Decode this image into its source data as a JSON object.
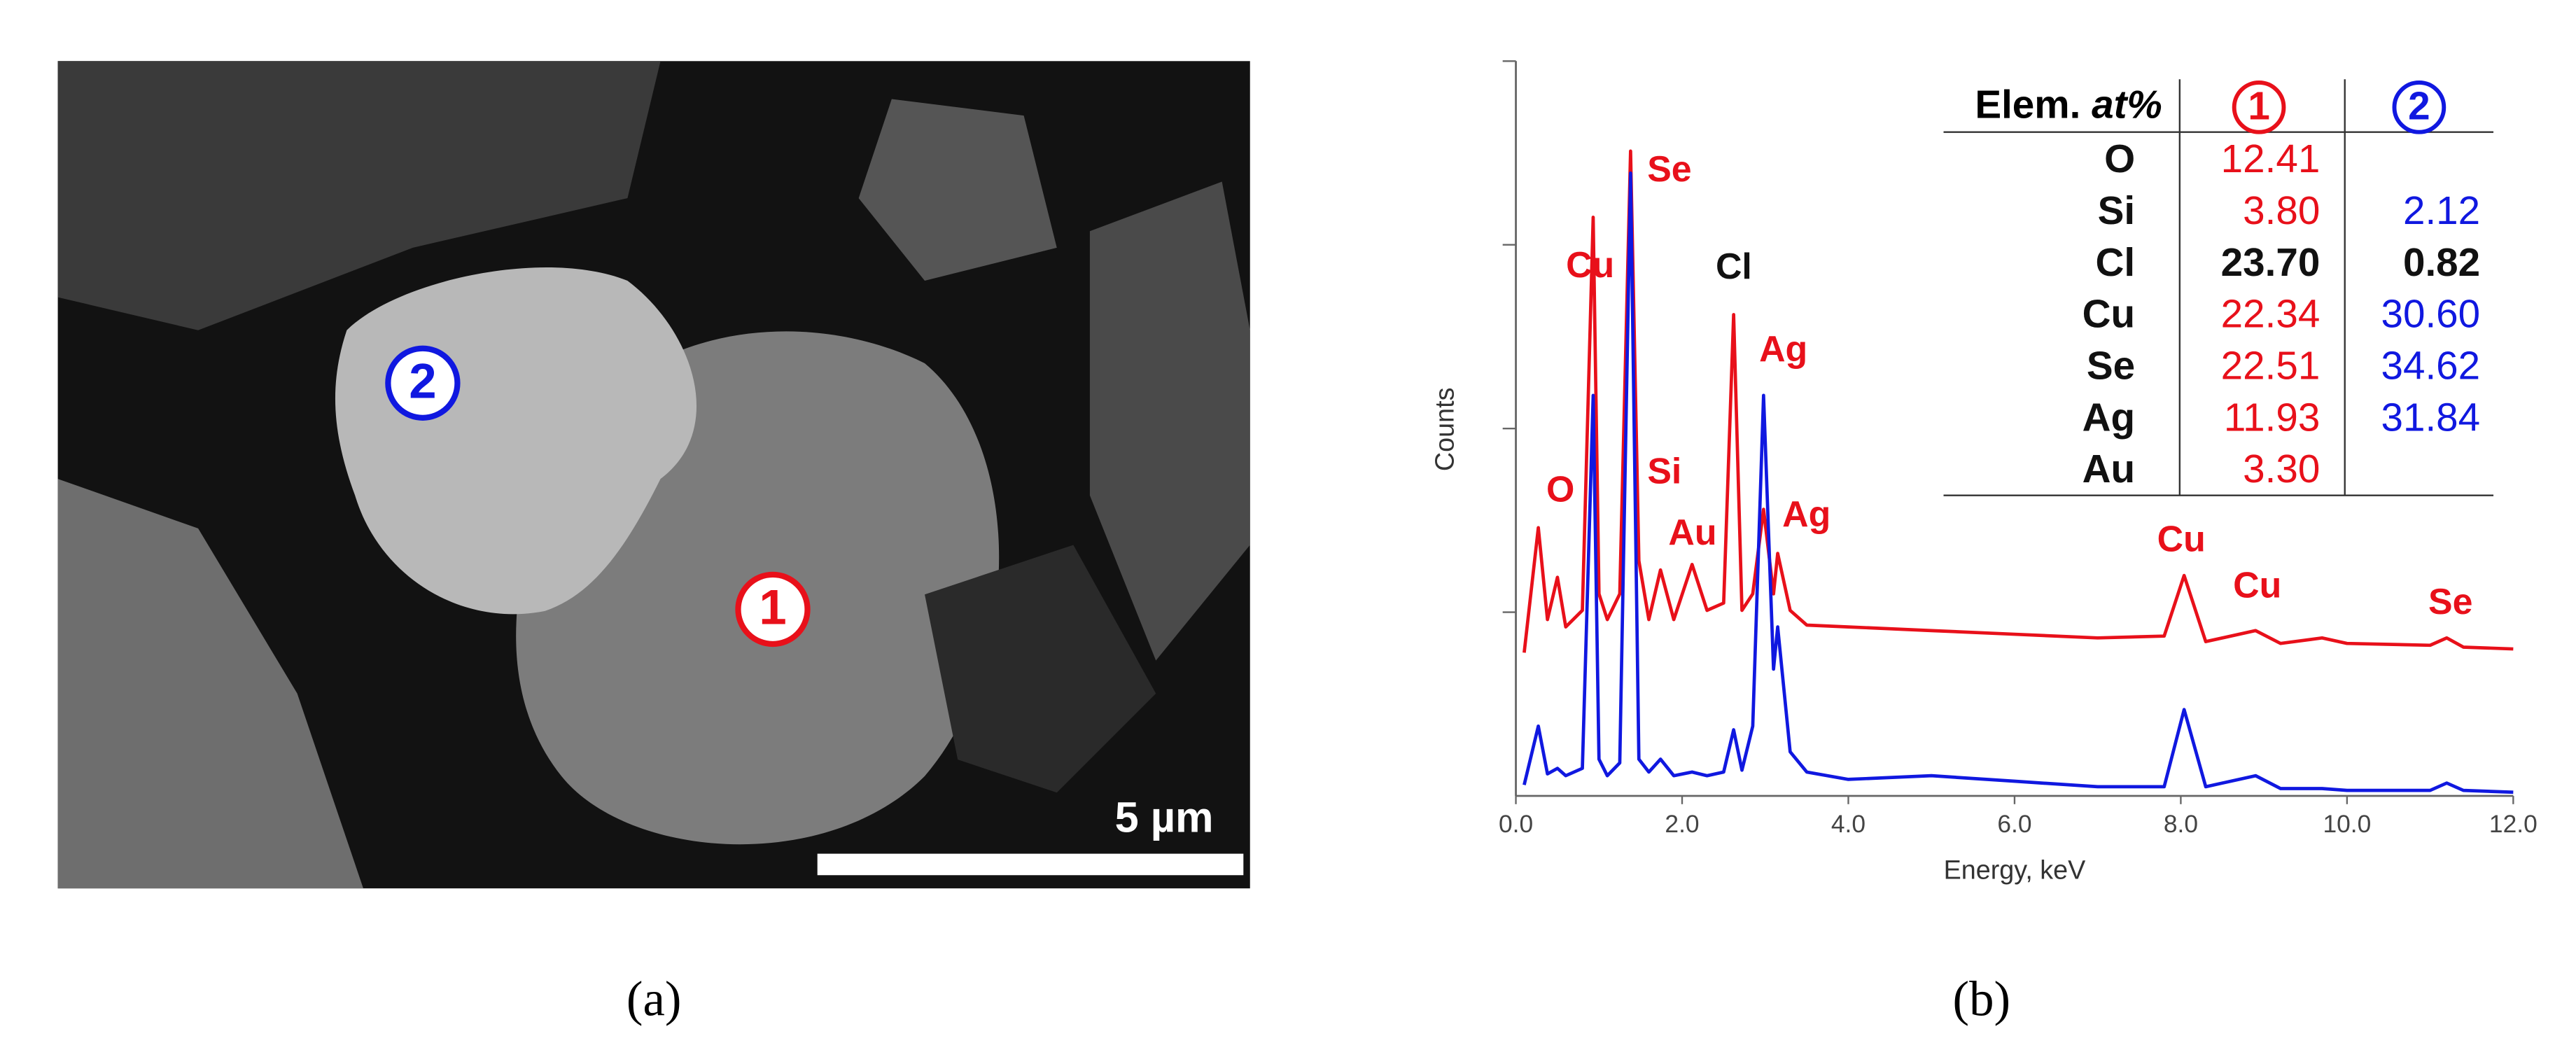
{
  "panel_a": {
    "markers": [
      "1",
      "2"
    ],
    "marker_colors": [
      "#e8101a",
      "#1018e0"
    ],
    "scale_bar": "5 µm",
    "caption": "(a)"
  },
  "panel_b": {
    "caption": "(b)"
  },
  "chart_data": {
    "type": "line",
    "x_label": "Energy, keV",
    "y_label": "Counts",
    "x": [
      0.1,
      0.27,
      0.38,
      0.5,
      0.6,
      0.8,
      0.93,
      1.0,
      1.1,
      1.25,
      1.38,
      1.48,
      1.6,
      1.74,
      1.9,
      2.12,
      2.3,
      2.5,
      2.62,
      2.72,
      2.85,
      2.98,
      3.1,
      3.15,
      3.3,
      3.5,
      4.0,
      5.0,
      6.0,
      7.0,
      7.8,
      8.04,
      8.3,
      8.9,
      9.2,
      9.7,
      10.0,
      11.0,
      11.2,
      11.4,
      12.0
    ],
    "series": [
      {
        "color": "#e8101a",
        "values": [
          0.78,
          1.46,
          0.96,
          1.19,
          0.92,
          1.01,
          3.15,
          1.1,
          0.96,
          1.1,
          3.51,
          1.28,
          0.96,
          1.23,
          0.96,
          1.26,
          1.01,
          1.05,
          2.62,
          1.01,
          1.1,
          1.56,
          1.1,
          1.32,
          1.01,
          0.93,
          0.92,
          0.9,
          0.88,
          0.86,
          0.87,
          1.2,
          0.84,
          0.9,
          0.83,
          0.86,
          0.83,
          0.82,
          0.86,
          0.81,
          0.8
        ]
      },
      {
        "color": "#1018e0",
        "values": [
          0.06,
          0.38,
          0.12,
          0.15,
          0.11,
          0.15,
          2.18,
          0.2,
          0.11,
          0.18,
          3.39,
          0.2,
          0.13,
          0.2,
          0.11,
          0.13,
          0.11,
          0.13,
          0.36,
          0.14,
          0.38,
          2.18,
          0.69,
          0.92,
          0.24,
          0.13,
          0.09,
          0.11,
          0.08,
          0.05,
          0.05,
          0.47,
          0.05,
          0.11,
          0.04,
          0.04,
          0.03,
          0.03,
          0.07,
          0.03,
          0.02
        ]
      }
    ],
    "xlim": [
      0,
      12
    ],
    "xticks": [
      {
        "value": 0,
        "label": "0.0"
      },
      {
        "value": 2,
        "label": "2.0"
      },
      {
        "value": 4,
        "label": "4.0"
      },
      {
        "value": 6,
        "label": "6.0"
      },
      {
        "value": 8,
        "label": "8.0"
      },
      {
        "value": 10,
        "label": "10.0"
      },
      {
        "value": 12,
        "label": "12.0"
      }
    ],
    "ylim": [
      0,
      4
    ],
    "yticks": [
      1,
      2,
      3,
      4
    ],
    "annotations": [
      {
        "text": "Cu",
        "color": "#e8101a"
      },
      {
        "text": "Se",
        "color": "#e8101a"
      },
      {
        "text": "Cl",
        "color": "#111111"
      },
      {
        "text": "Ag",
        "color": "#e8101a"
      },
      {
        "text": "O",
        "color": "#e8101a"
      },
      {
        "text": "Si",
        "color": "#e8101a"
      },
      {
        "text": "Au",
        "color": "#e8101a"
      },
      {
        "text": "Ag",
        "color": "#e8101a"
      },
      {
        "text": "Cu",
        "color": "#e8101a"
      },
      {
        "text": "Cu",
        "color": "#e8101a"
      },
      {
        "text": "Se",
        "color": "#e8101a"
      }
    ]
  },
  "table": {
    "header": [
      "Elem.",
      "at%",
      "1",
      "2"
    ],
    "rows": [
      [
        "O",
        "12.41",
        null
      ],
      [
        "Si",
        "3.80",
        "2.12"
      ],
      [
        "Cl",
        "23.70",
        "0.82"
      ],
      [
        "Cu",
        "22.34",
        "30.60"
      ],
      [
        "Se",
        "22.51",
        "34.62"
      ],
      [
        "Ag",
        "11.93",
        "31.84"
      ],
      [
        "Au",
        "3.30",
        null
      ]
    ],
    "bold_row": 2
  }
}
